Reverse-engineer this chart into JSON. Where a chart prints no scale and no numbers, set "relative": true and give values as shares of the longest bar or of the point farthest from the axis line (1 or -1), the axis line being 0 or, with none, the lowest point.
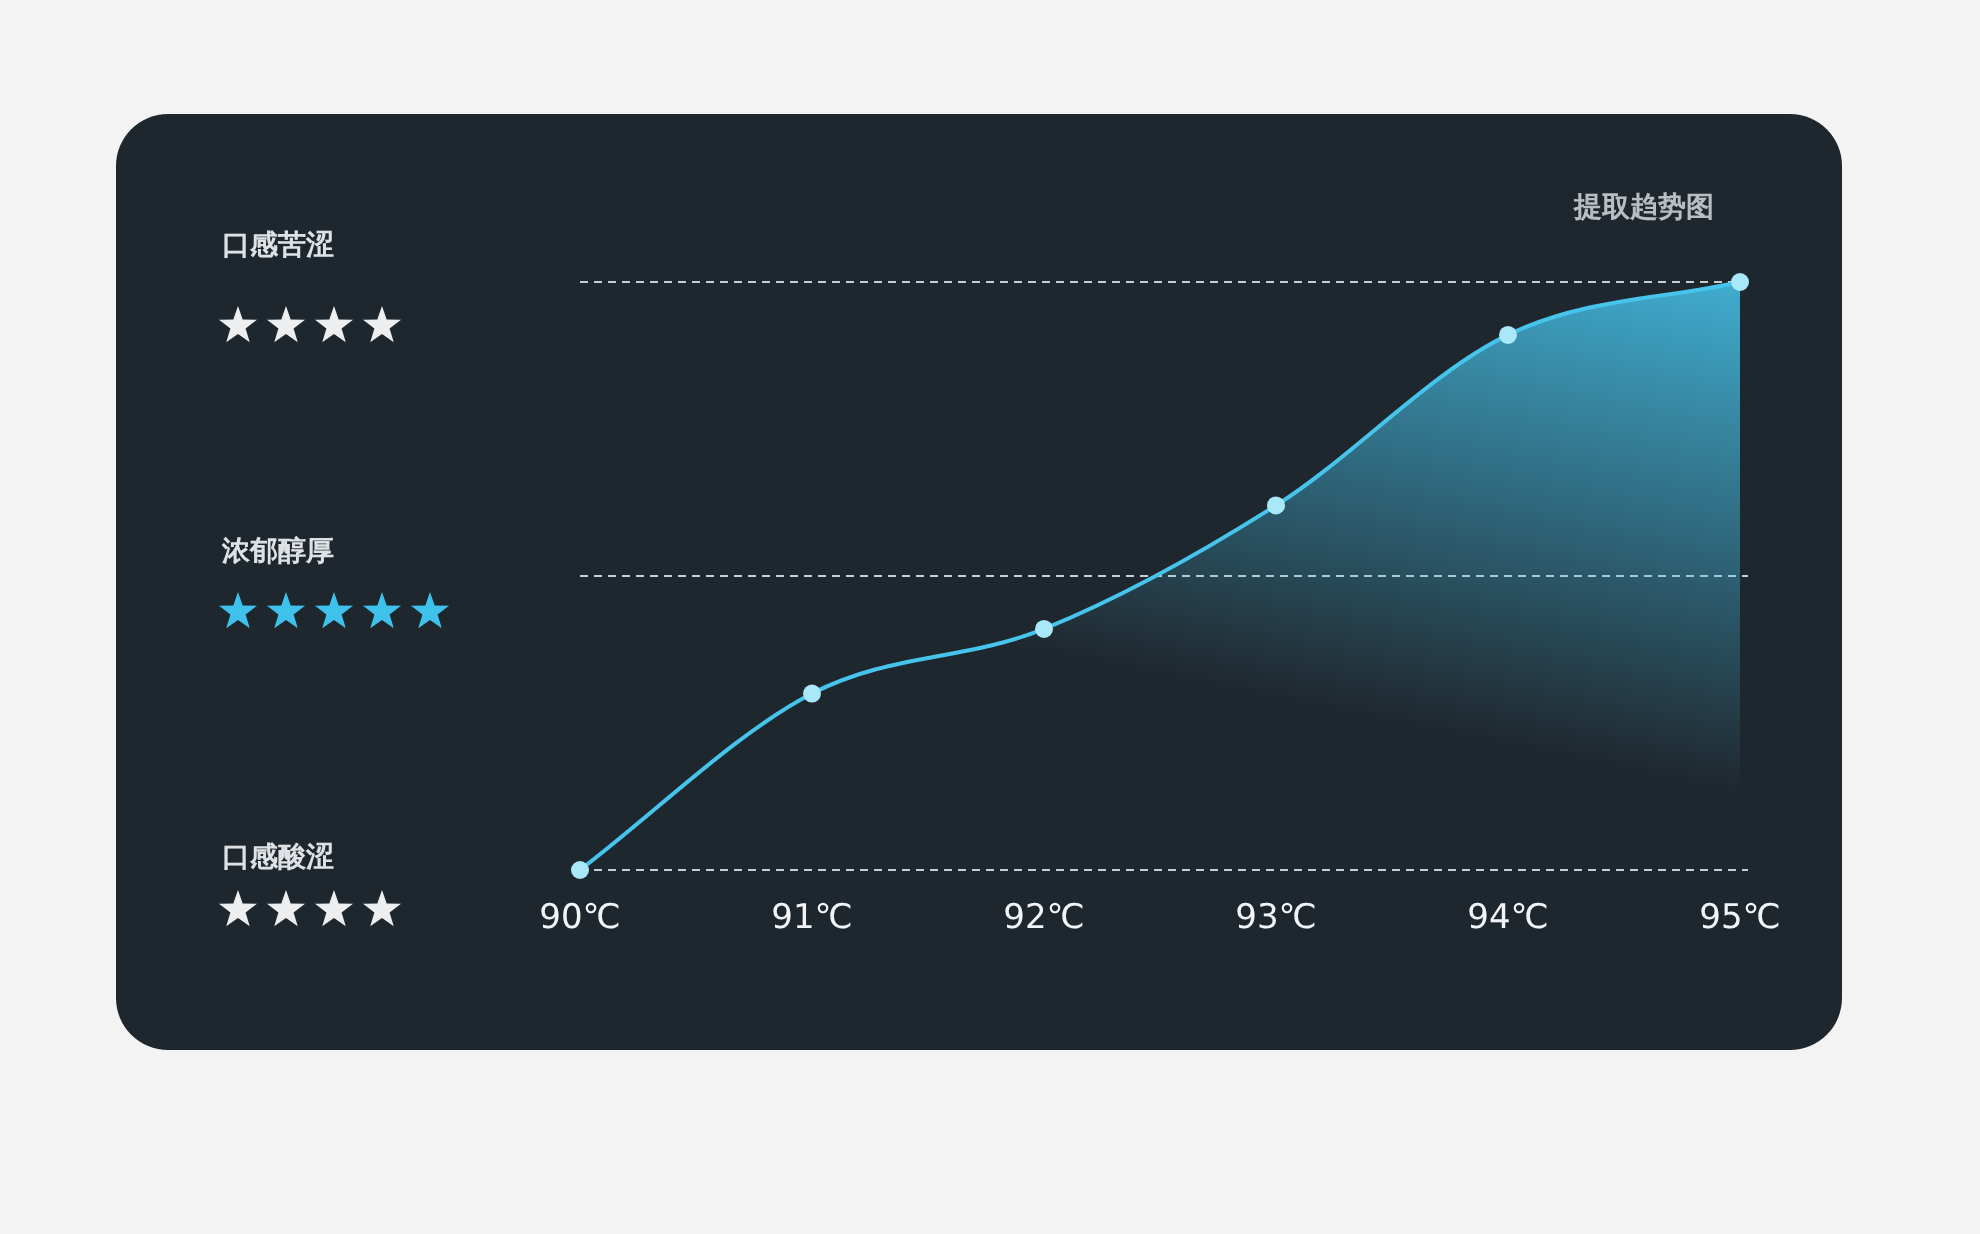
{
  "chart_data": {
    "type": "area",
    "title": "提取趋势图",
    "categories": [
      "90℃",
      "91℃",
      "92℃",
      "93℃",
      "94℃",
      "95℃"
    ],
    "relative": true,
    "marker": "circle",
    "line_style": "solid",
    "series": [
      {
        "color": "#46c4ec",
        "values": [
          0,
          0.3,
          0.41,
          0.62,
          0.91,
          1
        ]
      }
    ],
    "annotations": [
      "口感苦涩",
      "浓郁醇厚",
      "口感酸涩"
    ],
    "ref_lines": [
      {
        "axis": "y",
        "value": 1,
        "color": "#c8cdd2",
        "line_style": "dashed"
      },
      {
        "axis": "y",
        "value": 0.5,
        "color": "#c8cdd2",
        "line_style": "dashed"
      },
      {
        "axis": "y",
        "value": 0,
        "color": "#c8cdd2",
        "line_style": "dashed"
      }
    ]
  }
}
